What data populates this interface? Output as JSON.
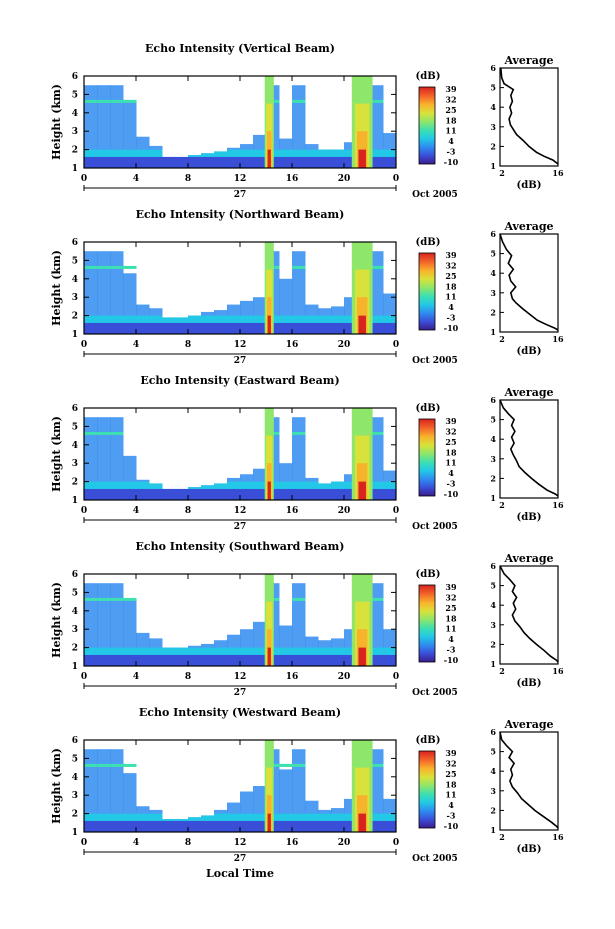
{
  "figure": {
    "x_title": "Local Time",
    "day_label": "27",
    "month_label": "Oct 2005"
  },
  "panels": [
    {
      "title": "Echo Intensity (Vertical Beam)",
      "y_label": "Height (km)"
    },
    {
      "title": "Echo Intensity (Northward Beam)",
      "y_label": "Height (km)"
    },
    {
      "title": "Echo Intensity (Eastward Beam)",
      "y_label": "Height (km)"
    },
    {
      "title": "Echo Intensity (Southward Beam)",
      "y_label": "Height (km)"
    },
    {
      "title": "Echo Intensity (Westward Beam)",
      "y_label": "Height (km)"
    }
  ],
  "colorbar": {
    "unit": "(dB)",
    "ticks": [
      "39",
      "32",
      "25",
      "18",
      "11",
      "4",
      "-3",
      "-10"
    ],
    "range": [
      -10,
      39
    ],
    "colors": [
      "#3b1c8c",
      "#3a4fd8",
      "#2f8cf0",
      "#22c8e6",
      "#3de0b0",
      "#8ee66a",
      "#d8e23a",
      "#f8b32c",
      "#f4662a",
      "#d8241e"
    ]
  },
  "chart_data": [
    {
      "type": "heatmap",
      "title": "Echo Intensity (Vertical Beam)",
      "ylabel": "Height (km)",
      "xlabel": "",
      "xlim": [
        0,
        24
      ],
      "ylim": [
        1,
        6
      ],
      "x_ticks": [
        "0",
        "4",
        "8",
        "12",
        "16",
        "20",
        "0"
      ],
      "y_ticks": [
        "1",
        "2",
        "3",
        "4",
        "5",
        "6"
      ],
      "echo_top_km": [
        [
          0,
          5.5
        ],
        [
          1,
          5.5
        ],
        [
          2,
          5.5
        ],
        [
          3,
          4.7
        ],
        [
          4,
          2.7
        ],
        [
          5,
          2.2
        ],
        [
          6,
          1.6
        ],
        [
          7,
          1.6
        ],
        [
          8,
          1.7
        ],
        [
          9,
          1.8
        ],
        [
          10,
          1.9
        ],
        [
          11,
          2.1
        ],
        [
          12,
          2.3
        ],
        [
          13,
          2.8
        ],
        [
          14,
          5.5
        ],
        [
          15,
          2.6
        ],
        [
          16,
          5.5
        ],
        [
          17,
          2.3
        ],
        [
          18,
          2.0
        ],
        [
          19,
          2.0
        ],
        [
          20,
          2.4
        ],
        [
          21,
          5.5
        ],
        [
          22,
          5.5
        ],
        [
          23,
          2.9
        ]
      ],
      "rain_periods_h": [
        [
          13.9,
          14.6
        ],
        [
          20.6,
          22.2
        ]
      ]
    },
    {
      "type": "heatmap",
      "title": "Echo Intensity (Northward Beam)",
      "ylabel": "Height (km)",
      "xlabel": "",
      "xlim": [
        0,
        24
      ],
      "ylim": [
        1,
        6
      ],
      "x_ticks": [
        "0",
        "4",
        "8",
        "12",
        "16",
        "20",
        "0"
      ],
      "y_ticks": [
        "1",
        "2",
        "3",
        "4",
        "5",
        "6"
      ],
      "echo_top_km": [
        [
          0,
          5.5
        ],
        [
          1,
          5.5
        ],
        [
          2,
          5.5
        ],
        [
          3,
          4.3
        ],
        [
          4,
          2.6
        ],
        [
          5,
          2.4
        ],
        [
          6,
          1.9
        ],
        [
          7,
          1.9
        ],
        [
          8,
          2.0
        ],
        [
          9,
          2.2
        ],
        [
          10,
          2.3
        ],
        [
          11,
          2.6
        ],
        [
          12,
          2.8
        ],
        [
          13,
          3.0
        ],
        [
          14,
          5.5
        ],
        [
          15,
          4.0
        ],
        [
          16,
          5.5
        ],
        [
          17,
          2.6
        ],
        [
          18,
          2.4
        ],
        [
          19,
          2.5
        ],
        [
          20,
          3.0
        ],
        [
          21,
          5.5
        ],
        [
          22,
          5.5
        ],
        [
          23,
          3.2
        ]
      ],
      "rain_periods_h": [
        [
          13.9,
          14.6
        ],
        [
          20.6,
          22.2
        ]
      ]
    },
    {
      "type": "heatmap",
      "title": "Echo Intensity (Eastward Beam)",
      "ylabel": "Height (km)",
      "xlabel": "",
      "xlim": [
        0,
        24
      ],
      "ylim": [
        1,
        6
      ],
      "x_ticks": [
        "0",
        "4",
        "8",
        "12",
        "16",
        "20",
        "0"
      ],
      "y_ticks": [
        "1",
        "2",
        "3",
        "4",
        "5",
        "6"
      ],
      "echo_top_km": [
        [
          0,
          5.5
        ],
        [
          1,
          5.5
        ],
        [
          2,
          5.5
        ],
        [
          3,
          3.4
        ],
        [
          4,
          2.1
        ],
        [
          5,
          1.9
        ],
        [
          6,
          1.6
        ],
        [
          7,
          1.6
        ],
        [
          8,
          1.7
        ],
        [
          9,
          1.8
        ],
        [
          10,
          1.9
        ],
        [
          11,
          2.2
        ],
        [
          12,
          2.4
        ],
        [
          13,
          2.7
        ],
        [
          14,
          5.5
        ],
        [
          15,
          3.0
        ],
        [
          16,
          5.5
        ],
        [
          17,
          2.2
        ],
        [
          18,
          1.9
        ],
        [
          19,
          2.0
        ],
        [
          20,
          2.4
        ],
        [
          21,
          5.5
        ],
        [
          22,
          5.5
        ],
        [
          23,
          2.6
        ]
      ],
      "rain_periods_h": [
        [
          13.9,
          14.6
        ],
        [
          20.6,
          22.2
        ]
      ]
    },
    {
      "type": "heatmap",
      "title": "Echo Intensity (Southward Beam)",
      "ylabel": "Height (km)",
      "xlabel": "",
      "xlim": [
        0,
        24
      ],
      "ylim": [
        1,
        6
      ],
      "x_ticks": [
        "0",
        "4",
        "8",
        "12",
        "16",
        "20",
        "0"
      ],
      "y_ticks": [
        "1",
        "2",
        "3",
        "4",
        "5",
        "6"
      ],
      "echo_top_km": [
        [
          0,
          5.5
        ],
        [
          1,
          5.5
        ],
        [
          2,
          5.5
        ],
        [
          3,
          4.6
        ],
        [
          4,
          2.8
        ],
        [
          5,
          2.5
        ],
        [
          6,
          2.0
        ],
        [
          7,
          2.0
        ],
        [
          8,
          2.1
        ],
        [
          9,
          2.2
        ],
        [
          10,
          2.4
        ],
        [
          11,
          2.7
        ],
        [
          12,
          3.0
        ],
        [
          13,
          3.4
        ],
        [
          14,
          5.5
        ],
        [
          15,
          3.2
        ],
        [
          16,
          5.5
        ],
        [
          17,
          2.6
        ],
        [
          18,
          2.4
        ],
        [
          19,
          2.5
        ],
        [
          20,
          3.0
        ],
        [
          21,
          5.5
        ],
        [
          22,
          5.5
        ],
        [
          23,
          3.0
        ]
      ],
      "rain_periods_h": [
        [
          13.9,
          14.6
        ],
        [
          20.6,
          22.2
        ]
      ]
    },
    {
      "type": "heatmap",
      "title": "Echo Intensity (Westward Beam)",
      "ylabel": "Height (km)",
      "xlabel": "Local Time",
      "xlim": [
        0,
        24
      ],
      "ylim": [
        1,
        6
      ],
      "x_ticks": [
        "0",
        "4",
        "8",
        "12",
        "16",
        "20",
        "0"
      ],
      "y_ticks": [
        "1",
        "2",
        "3",
        "4",
        "5",
        "6"
      ],
      "echo_top_km": [
        [
          0,
          5.5
        ],
        [
          1,
          5.5
        ],
        [
          2,
          5.5
        ],
        [
          3,
          4.2
        ],
        [
          4,
          2.4
        ],
        [
          5,
          2.2
        ],
        [
          6,
          1.7
        ],
        [
          7,
          1.7
        ],
        [
          8,
          1.8
        ],
        [
          9,
          1.9
        ],
        [
          10,
          2.2
        ],
        [
          11,
          2.6
        ],
        [
          12,
          3.2
        ],
        [
          13,
          3.5
        ],
        [
          14,
          5.5
        ],
        [
          15,
          4.4
        ],
        [
          16,
          5.5
        ],
        [
          17,
          2.7
        ],
        [
          18,
          2.2
        ],
        [
          19,
          2.3
        ],
        [
          20,
          2.8
        ],
        [
          21,
          5.5
        ],
        [
          22,
          5.5
        ],
        [
          23,
          2.8
        ]
      ],
      "rain_periods_h": [
        [
          13.9,
          14.6
        ],
        [
          20.6,
          22.2
        ]
      ]
    },
    {
      "type": "line",
      "title": "Average",
      "xlabel": "(dB)",
      "ylabel": "",
      "xlim": [
        2,
        16
      ],
      "ylim": [
        1,
        6
      ],
      "x_ticks": [
        "2",
        "16"
      ],
      "y_ticks": [
        "1",
        "2",
        "3",
        "4",
        "5",
        "6"
      ],
      "x": [
        2.2,
        2.4,
        3.0,
        5.2,
        4.6,
        5.0,
        4.4,
        4.8,
        4.2,
        4.5,
        5.4,
        6.0,
        7.6,
        9.0,
        10.8,
        12.6,
        14.8,
        16.0
      ],
      "y": [
        6.0,
        5.5,
        5.2,
        4.9,
        4.6,
        4.3,
        4.0,
        3.7,
        3.4,
        3.1,
        2.8,
        2.6,
        2.3,
        2.0,
        1.7,
        1.5,
        1.3,
        1.1
      ]
    },
    {
      "type": "line",
      "title": "Average",
      "xlabel": "(dB)",
      "ylabel": "",
      "xlim": [
        2,
        16
      ],
      "ylim": [
        1,
        6
      ],
      "x_ticks": [
        "2",
        "16"
      ],
      "y_ticks": [
        "1",
        "2",
        "3",
        "4",
        "5",
        "6"
      ],
      "x": [
        2.0,
        2.6,
        3.6,
        4.8,
        4.0,
        5.2,
        4.2,
        4.6,
        5.8,
        4.6,
        5.0,
        5.8,
        7.4,
        9.2,
        11.0,
        13.0,
        15.2,
        16.0
      ],
      "y": [
        6.0,
        5.6,
        5.2,
        4.9,
        4.5,
        4.2,
        3.9,
        3.6,
        3.3,
        3.0,
        2.7,
        2.5,
        2.2,
        1.9,
        1.6,
        1.4,
        1.2,
        1.1
      ]
    },
    {
      "type": "line",
      "title": "Average",
      "xlabel": "(dB)",
      "ylabel": "",
      "xlim": [
        2,
        16
      ],
      "ylim": [
        1,
        6
      ],
      "x_ticks": [
        "2",
        "16"
      ],
      "y_ticks": [
        "1",
        "2",
        "3",
        "4",
        "5",
        "6"
      ],
      "x": [
        2.0,
        2.8,
        4.0,
        5.4,
        4.8,
        5.6,
        4.8,
        5.4,
        4.6,
        5.2,
        6.0,
        6.6,
        8.0,
        9.6,
        11.4,
        13.4,
        15.4,
        16.0
      ],
      "y": [
        6.0,
        5.6,
        5.3,
        5.0,
        4.7,
        4.4,
        4.1,
        3.8,
        3.5,
        3.2,
        2.9,
        2.6,
        2.3,
        2.0,
        1.7,
        1.4,
        1.2,
        1.1
      ]
    },
    {
      "type": "line",
      "title": "Average",
      "xlabel": "(dB)",
      "ylabel": "",
      "xlim": [
        2,
        16
      ],
      "ylim": [
        1,
        6
      ],
      "x_ticks": [
        "2",
        "16"
      ],
      "y_ticks": [
        "1",
        "2",
        "3",
        "4",
        "5",
        "6"
      ],
      "x": [
        2.0,
        3.0,
        4.4,
        5.6,
        5.0,
        6.0,
        5.2,
        5.8,
        5.0,
        5.6,
        6.8,
        7.8,
        9.2,
        10.8,
        12.6,
        14.2,
        15.6,
        16.0
      ],
      "y": [
        6.0,
        5.6,
        5.3,
        5.0,
        4.7,
        4.4,
        4.1,
        3.8,
        3.5,
        3.2,
        2.9,
        2.6,
        2.3,
        2.0,
        1.7,
        1.4,
        1.2,
        1.1
      ]
    },
    {
      "type": "line",
      "title": "Average",
      "xlabel": "(dB)",
      "ylabel": "",
      "xlim": [
        2,
        16
      ],
      "ylim": [
        1,
        6
      ],
      "x_ticks": [
        "2",
        "16"
      ],
      "y_ticks": [
        "1",
        "2",
        "3",
        "4",
        "5",
        "6"
      ],
      "x": [
        2.0,
        2.4,
        3.6,
        5.0,
        4.2,
        5.4,
        4.6,
        5.0,
        4.4,
        5.0,
        6.2,
        7.2,
        8.8,
        10.4,
        12.4,
        14.4,
        15.6,
        16.0
      ],
      "y": [
        6.0,
        5.6,
        5.3,
        5.0,
        4.7,
        4.4,
        4.1,
        3.8,
        3.5,
        3.2,
        2.9,
        2.6,
        2.3,
        2.0,
        1.7,
        1.4,
        1.2,
        1.1
      ]
    }
  ]
}
